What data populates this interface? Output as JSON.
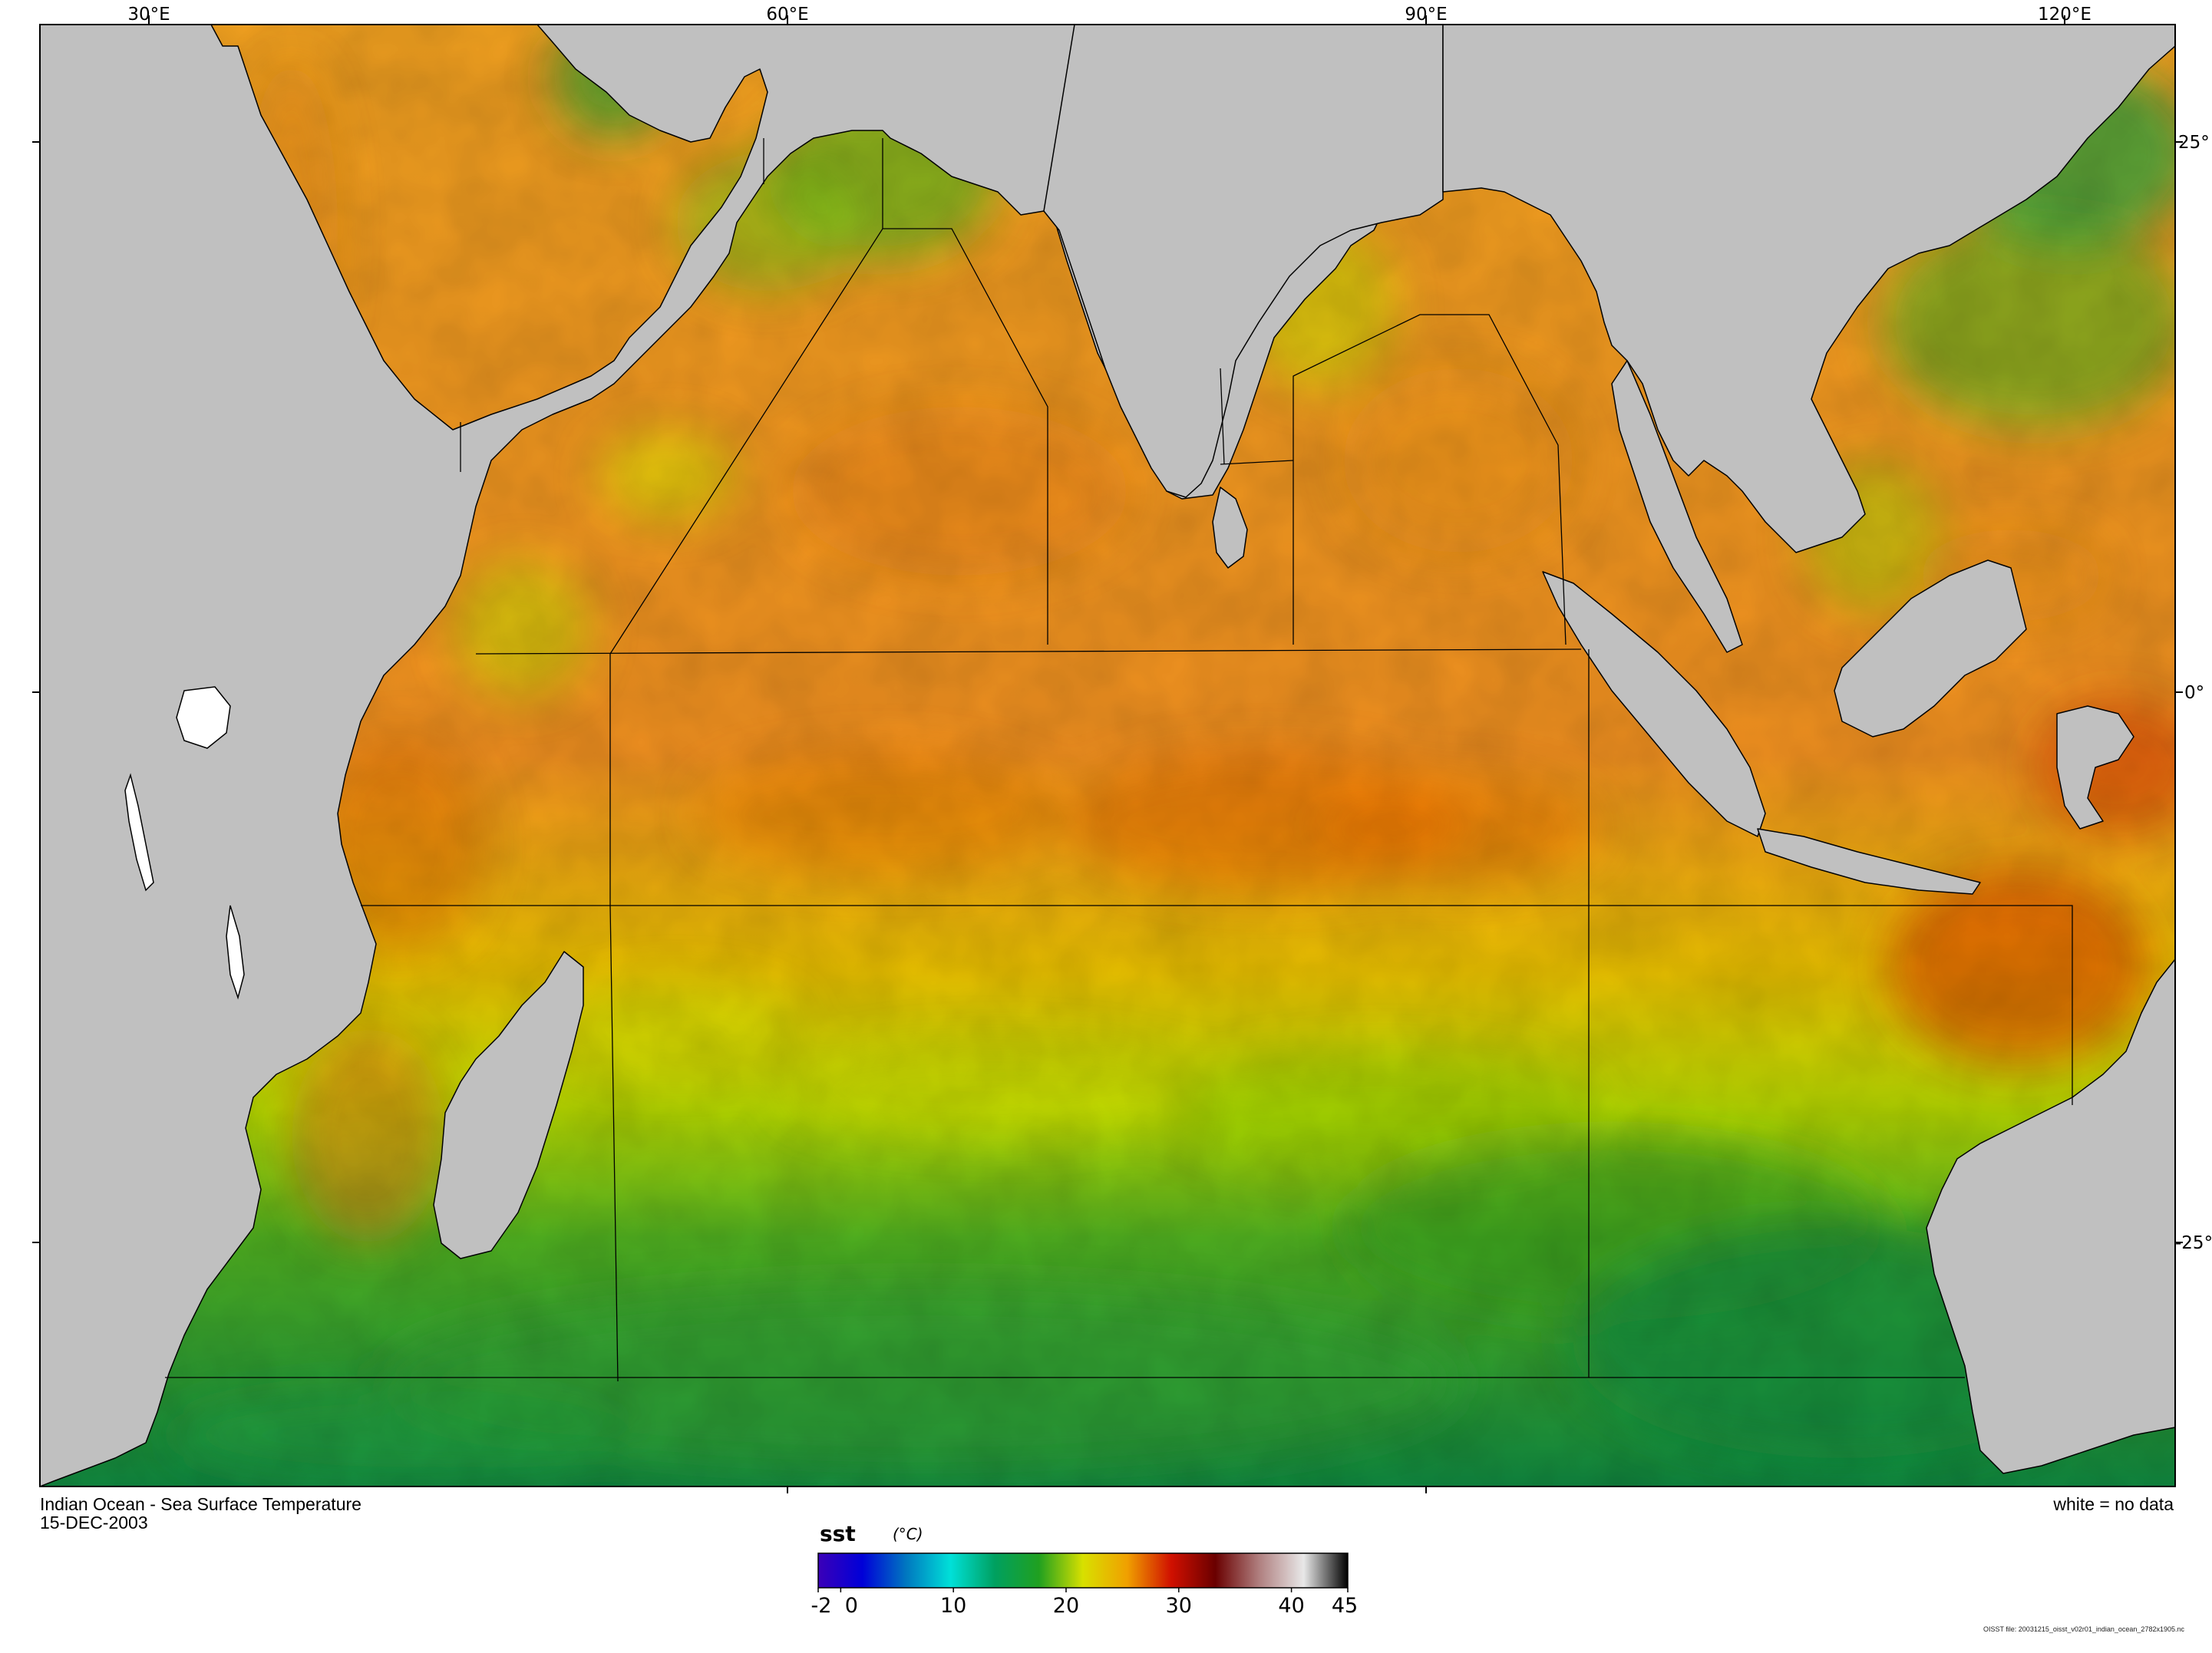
{
  "map": {
    "title": "Indian Ocean - Sea Surface Temperature",
    "date": "15-DEC-2003",
    "no_data_note": "white = no data",
    "variable": "sst",
    "units": "(°C)",
    "file_note": "OISST file: 20031215_oisst_v02r01_indian_ocean_2782x1905.nc",
    "lon_ticks": [
      "30°E",
      "60°E",
      "90°E",
      "120°E"
    ],
    "lat_ticks": [
      "25°",
      "0°",
      "-25°"
    ],
    "colorbar": {
      "min": -2,
      "max": 45,
      "tick_labels": [
        "-2",
        "0",
        "10",
        "20",
        "30",
        "40",
        "45"
      ],
      "tick_values": [
        -2,
        0,
        10,
        20,
        30,
        40,
        45
      ],
      "colors": [
        "#3b00b8",
        "#0000d8",
        "#0078c0",
        "#00e0d8",
        "#00a060",
        "#20a020",
        "#d8e000",
        "#f0a000",
        "#d01000",
        "#6a0000",
        "#b08080",
        "#e8e8e8",
        "#000000"
      ]
    },
    "land_color": "#c0c0c0",
    "coast_color": "#000000"
  }
}
